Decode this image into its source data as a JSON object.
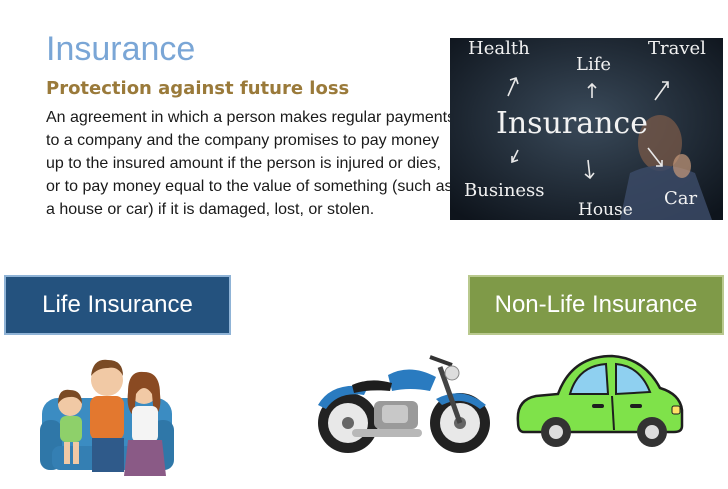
{
  "title": "Insurance",
  "subtitle": "Protection against future loss",
  "definition": "An agreement in which a person makes regular payments to a  company and the company promises to pay money up to the insured amount if the person is injured or dies, or to pay money equal to the value of something (such as a house or car) if it is damaged, lost, or stolen.",
  "photo": {
    "words": {
      "health": "Health",
      "life": "Life",
      "travel": "Travel",
      "insurance": "Insurance",
      "business": "Business",
      "house": "House",
      "car": "Car"
    }
  },
  "buttons": {
    "life": "Life Insurance",
    "non_life": "Non-Life Insurance"
  },
  "colors": {
    "title": "#7aa6d6",
    "subtitle": "#9a7a3a",
    "life_button": "#24527e",
    "non_life_button": "#7f9a48",
    "car_body": "#7fe24a",
    "motorcycle_tank": "#2a7bc0"
  },
  "icons": [
    "family-illustration",
    "motorcycle-illustration",
    "car-illustration",
    "chalkboard-photo"
  ]
}
